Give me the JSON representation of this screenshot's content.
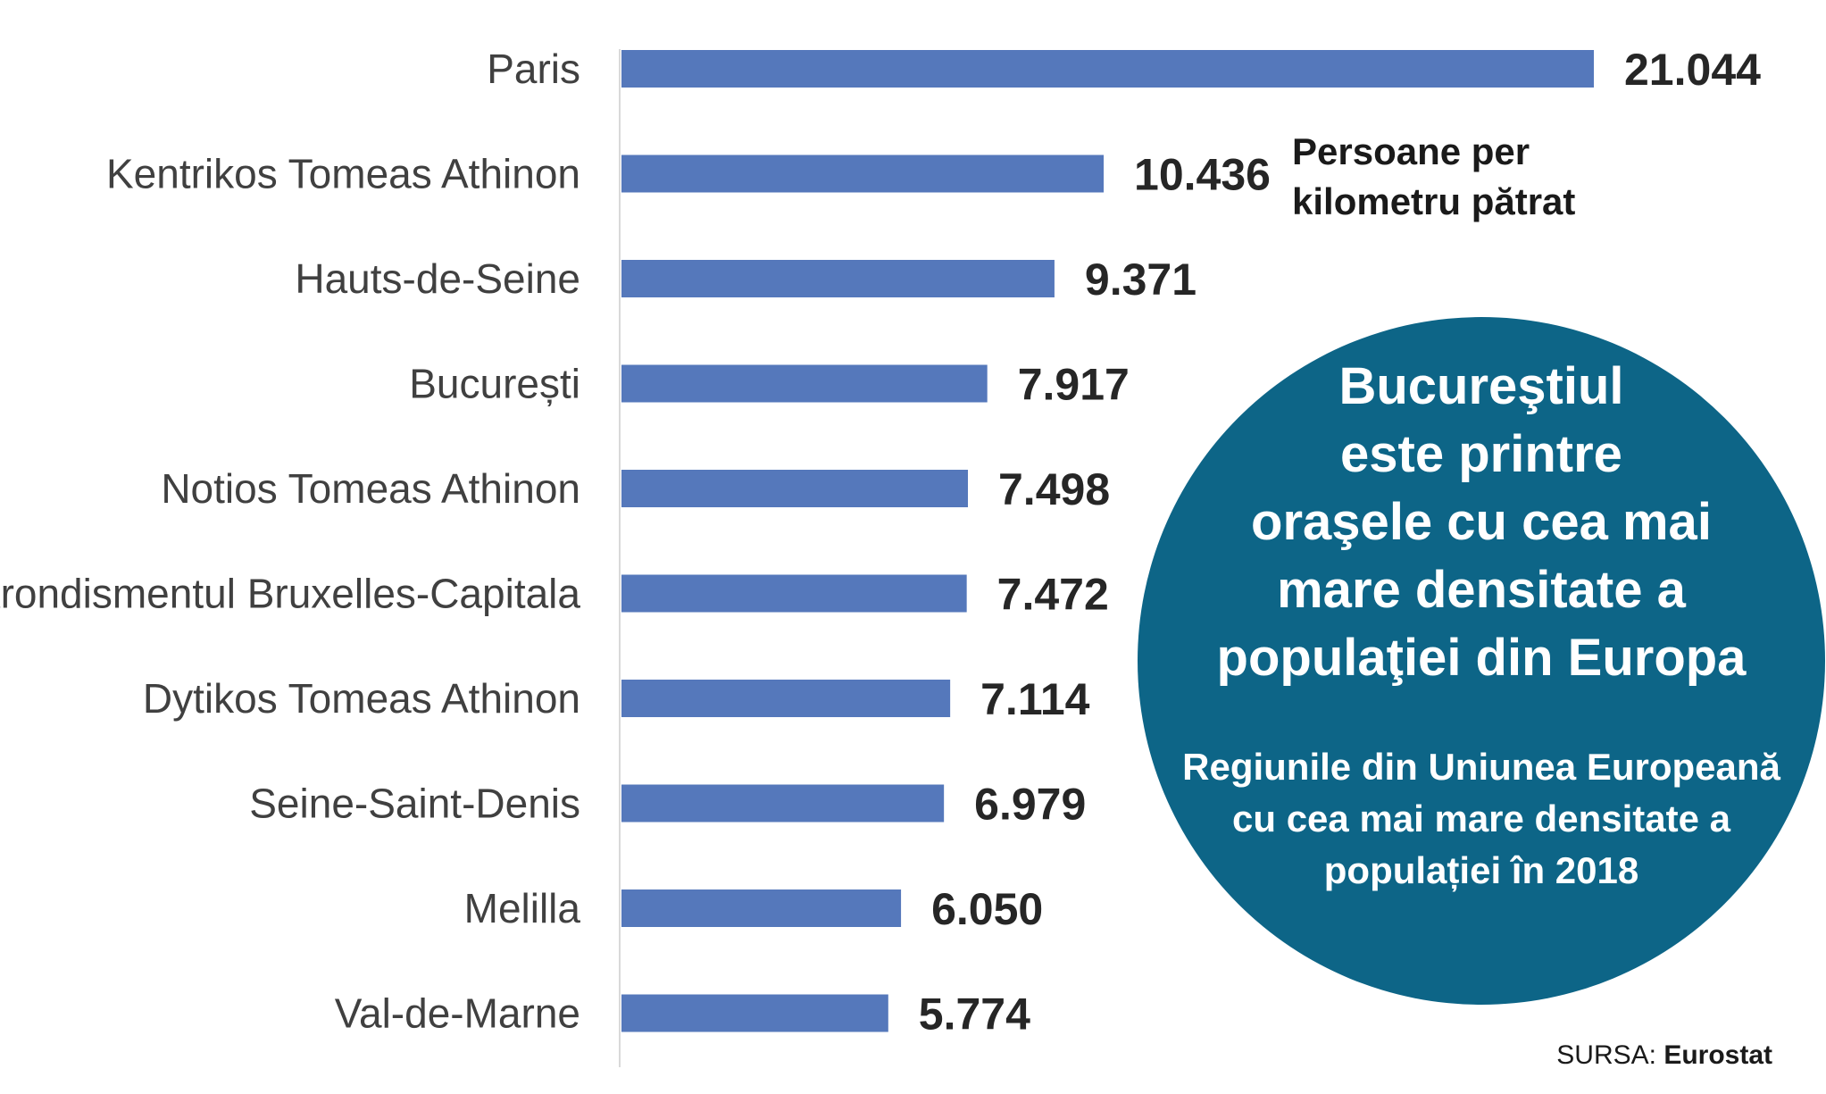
{
  "unit_label_line1": "Persoane per",
  "unit_label_line2": "kilometru pătrat",
  "callout": {
    "title": "Bucureştiul\neste printre\noraşele cu cea mai\nmare densitate a\npopulaţiei din Europa",
    "subtitle": "Regiunile din Uniunea Europeană\ncu cea mai mare densitate a\npopulației în 2018"
  },
  "source": {
    "prefix": "SURSA:",
    "name": "Eurostat"
  },
  "colors": {
    "bar": "#5578bb",
    "callout_background": "#0d6587"
  },
  "chart_data": {
    "type": "bar",
    "orientation": "horizontal",
    "categories": [
      "Paris",
      "Kentrikos Tomeas Athinon",
      "Hauts-de-Seine",
      "București",
      "Notios Tomeas Athinon",
      "Arondismentul Bruxelles-Capitala",
      "Dytikos Tomeas Athinon",
      "Seine-Saint-Denis",
      "Melilla",
      "Val-de-Marne"
    ],
    "values": [
      21044,
      10436,
      9371,
      7917,
      7498,
      7472,
      7114,
      6979,
      6050,
      5774
    ],
    "value_labels": [
      "21.044",
      "10.436",
      "9.371",
      "7.917",
      "7.498",
      "7.472",
      "7.114",
      "6.979",
      "6.050",
      "5.774"
    ],
    "xlim": [
      0,
      21044
    ],
    "grid": false,
    "legend": "none"
  }
}
